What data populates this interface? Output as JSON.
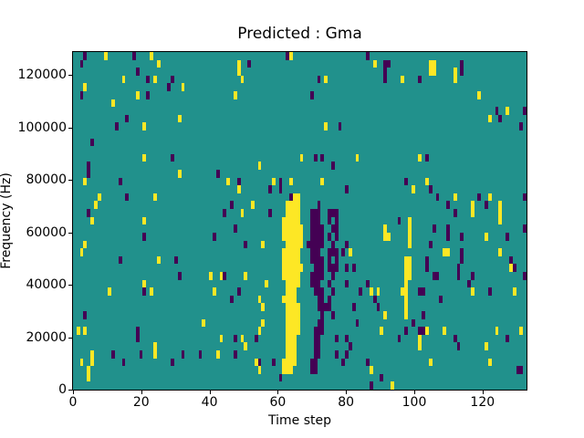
{
  "chart_data": {
    "type": "heatmap",
    "title": "Predicted : Gma",
    "xlabel": "Time step",
    "ylabel": "Frequency (Hz)",
    "x_ticks": [
      0,
      20,
      40,
      60,
      80,
      100,
      120
    ],
    "y_ticks": [
      0,
      20000,
      40000,
      60000,
      80000,
      100000,
      120000
    ],
    "xlim": [
      0,
      133
    ],
    "ylim": [
      0,
      128700
    ],
    "grid": {
      "cols": 130,
      "rows": 43,
      "row0": "top (highest frequency)"
    },
    "legend": "none",
    "axes_grid": false,
    "colors": {
      "background": "#21918c",
      "yellow": "#fde725",
      "purple": "#440154",
      "figure": "#ffffff",
      "text": "#000000"
    },
    "cells_yellow": [
      [
        9,
        0
      ],
      [
        22,
        0
      ],
      [
        62,
        0
      ],
      [
        24,
        1
      ],
      [
        47,
        1
      ],
      [
        86,
        1
      ],
      [
        102,
        1
      ],
      [
        103,
        1
      ],
      [
        47,
        2
      ],
      [
        102,
        2
      ],
      [
        103,
        2
      ],
      [
        109,
        2
      ],
      [
        14,
        3
      ],
      [
        23,
        3
      ],
      [
        48,
        3
      ],
      [
        72,
        3
      ],
      [
        94,
        3
      ],
      [
        109,
        3
      ],
      [
        3,
        4
      ],
      [
        31,
        4
      ],
      [
        18,
        5
      ],
      [
        46,
        5
      ],
      [
        116,
        5
      ],
      [
        11,
        6
      ],
      [
        124,
        7
      ],
      [
        30,
        8
      ],
      [
        119,
        8
      ],
      [
        20,
        9
      ],
      [
        72,
        9
      ],
      [
        20,
        13
      ],
      [
        65,
        13
      ],
      [
        81,
        13
      ],
      [
        99,
        13
      ],
      [
        53,
        14
      ],
      [
        30,
        15
      ],
      [
        3,
        16
      ],
      [
        44,
        16
      ],
      [
        57,
        16
      ],
      [
        62,
        16
      ],
      [
        71,
        16
      ],
      [
        101,
        16
      ],
      [
        47,
        17
      ],
      [
        97,
        17
      ],
      [
        7,
        18
      ],
      [
        23,
        18
      ],
      [
        109,
        18
      ],
      [
        119,
        18
      ],
      [
        63,
        18
      ],
      [
        64,
        18
      ],
      [
        6,
        19
      ],
      [
        51,
        19
      ],
      [
        114,
        19
      ],
      [
        122,
        19
      ],
      [
        61,
        19
      ],
      [
        62,
        19
      ],
      [
        63,
        19
      ],
      [
        64,
        19
      ],
      [
        48,
        20
      ],
      [
        114,
        20
      ],
      [
        122,
        20
      ],
      [
        61,
        20
      ],
      [
        62,
        20
      ],
      [
        63,
        20
      ],
      [
        64,
        20
      ],
      [
        5,
        21
      ],
      [
        20,
        21
      ],
      [
        96,
        21
      ],
      [
        122,
        21
      ],
      [
        60,
        21
      ],
      [
        61,
        21
      ],
      [
        62,
        21
      ],
      [
        63,
        21
      ],
      [
        64,
        21
      ],
      [
        89,
        22
      ],
      [
        96,
        22
      ],
      [
        60,
        22
      ],
      [
        61,
        22
      ],
      [
        62,
        22
      ],
      [
        63,
        22
      ],
      [
        64,
        22
      ],
      [
        65,
        22
      ],
      [
        89,
        23
      ],
      [
        90,
        23
      ],
      [
        96,
        23
      ],
      [
        118,
        23
      ],
      [
        60,
        23
      ],
      [
        61,
        23
      ],
      [
        62,
        23
      ],
      [
        63,
        23
      ],
      [
        64,
        23
      ],
      [
        65,
        23
      ],
      [
        3,
        24
      ],
      [
        54,
        24
      ],
      [
        96,
        24
      ],
      [
        61,
        24
      ],
      [
        62,
        24
      ],
      [
        63,
        24
      ],
      [
        64,
        24
      ],
      [
        65,
        24
      ],
      [
        2,
        25
      ],
      [
        79,
        25
      ],
      [
        106,
        25
      ],
      [
        107,
        25
      ],
      [
        122,
        25
      ],
      [
        60,
        25
      ],
      [
        61,
        25
      ],
      [
        62,
        25
      ],
      [
        63,
        25
      ],
      [
        64,
        25
      ],
      [
        24,
        26
      ],
      [
        95,
        26
      ],
      [
        96,
        26
      ],
      [
        60,
        26
      ],
      [
        61,
        26
      ],
      [
        62,
        26
      ],
      [
        63,
        26
      ],
      [
        64,
        26
      ],
      [
        23,
        37
      ],
      [
        95,
        27
      ],
      [
        96,
        27
      ],
      [
        125,
        27
      ],
      [
        60,
        27
      ],
      [
        61,
        27
      ],
      [
        62,
        27
      ],
      [
        63,
        27
      ],
      [
        64,
        27
      ],
      [
        65,
        27
      ],
      [
        39,
        28
      ],
      [
        42,
        28
      ],
      [
        49,
        28
      ],
      [
        95,
        28
      ],
      [
        96,
        28
      ],
      [
        60,
        28
      ],
      [
        61,
        28
      ],
      [
        62,
        28
      ],
      [
        63,
        28
      ],
      [
        64,
        28
      ],
      [
        20,
        29
      ],
      [
        55,
        29
      ],
      [
        95,
        29
      ],
      [
        61,
        29
      ],
      [
        62,
        29
      ],
      [
        63,
        29
      ],
      [
        64,
        29
      ],
      [
        10,
        30
      ],
      [
        22,
        30
      ],
      [
        40,
        30
      ],
      [
        85,
        30
      ],
      [
        87,
        30
      ],
      [
        94,
        30
      ],
      [
        95,
        30
      ],
      [
        114,
        30
      ],
      [
        126,
        30
      ],
      [
        61,
        30
      ],
      [
        62,
        30
      ],
      [
        63,
        30
      ],
      [
        53,
        31
      ],
      [
        95,
        31
      ],
      [
        60,
        31
      ],
      [
        61,
        31
      ],
      [
        62,
        31
      ],
      [
        63,
        31
      ],
      [
        54,
        32
      ],
      [
        95,
        32
      ],
      [
        61,
        32
      ],
      [
        62,
        32
      ],
      [
        63,
        32
      ],
      [
        64,
        32
      ],
      [
        89,
        33
      ],
      [
        95,
        33
      ],
      [
        61,
        33
      ],
      [
        62,
        33
      ],
      [
        63,
        33
      ],
      [
        64,
        33
      ],
      [
        37,
        34
      ],
      [
        54,
        34
      ],
      [
        61,
        34
      ],
      [
        62,
        34
      ],
      [
        63,
        34
      ],
      [
        64,
        34
      ],
      [
        1,
        35
      ],
      [
        3,
        35
      ],
      [
        53,
        35
      ],
      [
        88,
        35
      ],
      [
        101,
        35
      ],
      [
        106,
        35
      ],
      [
        121,
        35
      ],
      [
        128,
        35
      ],
      [
        61,
        35
      ],
      [
        62,
        35
      ],
      [
        63,
        35
      ],
      [
        64,
        35
      ],
      [
        42,
        36
      ],
      [
        48,
        36
      ],
      [
        99,
        36
      ],
      [
        61,
        36
      ],
      [
        62,
        36
      ],
      [
        63,
        36
      ],
      [
        49,
        37
      ],
      [
        99,
        37
      ],
      [
        118,
        37
      ],
      [
        61,
        37
      ],
      [
        62,
        37
      ],
      [
        63,
        37
      ],
      [
        5,
        38
      ],
      [
        23,
        38
      ],
      [
        41,
        38
      ],
      [
        61,
        38
      ],
      [
        62,
        38
      ],
      [
        63,
        38
      ],
      [
        2,
        39
      ],
      [
        5,
        39
      ],
      [
        52,
        39
      ],
      [
        102,
        39
      ],
      [
        119,
        39
      ],
      [
        60,
        39
      ],
      [
        61,
        39
      ],
      [
        62,
        39
      ],
      [
        63,
        39
      ],
      [
        4,
        40
      ],
      [
        53,
        40
      ],
      [
        85,
        40
      ],
      [
        60,
        40
      ],
      [
        61,
        40
      ],
      [
        62,
        40
      ],
      [
        4,
        41
      ],
      [
        91,
        42
      ]
    ],
    "cells_purple": [
      [
        3,
        0
      ],
      [
        17,
        0
      ],
      [
        61,
        0
      ],
      [
        84,
        0
      ],
      [
        2,
        1
      ],
      [
        50,
        1
      ],
      [
        89,
        1
      ],
      [
        90,
        1
      ],
      [
        111,
        1
      ],
      [
        18,
        2
      ],
      [
        89,
        2
      ],
      [
        111,
        2
      ],
      [
        21,
        3
      ],
      [
        28,
        3
      ],
      [
        70,
        3
      ],
      [
        89,
        3
      ],
      [
        99,
        3
      ],
      [
        27,
        4
      ],
      [
        2,
        5
      ],
      [
        21,
        5
      ],
      [
        68,
        5
      ],
      [
        121,
        7
      ],
      [
        129,
        7
      ],
      [
        15,
        8
      ],
      [
        122,
        8
      ],
      [
        12,
        9
      ],
      [
        76,
        9
      ],
      [
        128,
        9
      ],
      [
        5,
        11
      ],
      [
        28,
        13
      ],
      [
        69,
        13
      ],
      [
        71,
        13
      ],
      [
        101,
        13
      ],
      [
        4,
        14
      ],
      [
        74,
        14
      ],
      [
        4,
        15
      ],
      [
        41,
        15
      ],
      [
        13,
        16
      ],
      [
        47,
        16
      ],
      [
        59,
        16
      ],
      [
        95,
        16
      ],
      [
        56,
        17
      ],
      [
        59,
        17
      ],
      [
        78,
        17
      ],
      [
        102,
        17
      ],
      [
        15,
        18
      ],
      [
        62,
        18
      ],
      [
        104,
        18
      ],
      [
        116,
        18
      ],
      [
        129,
        18
      ],
      [
        45,
        19
      ],
      [
        107,
        19
      ],
      [
        118,
        19
      ],
      [
        70,
        19
      ],
      [
        4,
        20
      ],
      [
        43,
        20
      ],
      [
        56,
        20
      ],
      [
        109,
        20
      ],
      [
        68,
        20
      ],
      [
        69,
        20
      ],
      [
        70,
        20
      ],
      [
        73,
        20
      ],
      [
        74,
        20
      ],
      [
        75,
        20
      ],
      [
        93,
        21
      ],
      [
        68,
        21
      ],
      [
        69,
        21
      ],
      [
        70,
        21
      ],
      [
        73,
        21
      ],
      [
        75,
        21
      ],
      [
        46,
        22
      ],
      [
        103,
        22
      ],
      [
        107,
        22
      ],
      [
        129,
        22
      ],
      [
        68,
        22
      ],
      [
        69,
        22
      ],
      [
        70,
        22
      ],
      [
        71,
        22
      ],
      [
        74,
        22
      ],
      [
        75,
        22
      ],
      [
        20,
        23
      ],
      [
        40,
        23
      ],
      [
        107,
        23
      ],
      [
        111,
        23
      ],
      [
        124,
        23
      ],
      [
        68,
        23
      ],
      [
        69,
        23
      ],
      [
        70,
        23
      ],
      [
        71,
        23
      ],
      [
        73,
        23
      ],
      [
        75,
        23
      ],
      [
        49,
        24
      ],
      [
        78,
        24
      ],
      [
        102,
        24
      ],
      [
        67,
        24
      ],
      [
        68,
        24
      ],
      [
        69,
        24
      ],
      [
        70,
        24
      ],
      [
        71,
        24
      ],
      [
        74,
        24
      ],
      [
        77,
        25
      ],
      [
        111,
        25
      ],
      [
        68,
        25
      ],
      [
        69,
        25
      ],
      [
        70,
        25
      ],
      [
        73,
        25
      ],
      [
        74,
        25
      ],
      [
        75,
        25
      ],
      [
        13,
        26
      ],
      [
        29,
        26
      ],
      [
        101,
        26
      ],
      [
        111,
        26
      ],
      [
        125,
        26
      ],
      [
        68,
        26
      ],
      [
        69,
        26
      ],
      [
        70,
        26
      ],
      [
        71,
        26
      ],
      [
        73,
        26
      ],
      [
        75,
        26
      ],
      [
        78,
        27
      ],
      [
        80,
        27
      ],
      [
        101,
        27
      ],
      [
        110,
        27
      ],
      [
        126,
        27
      ],
      [
        69,
        27
      ],
      [
        70,
        27
      ],
      [
        71,
        27
      ],
      [
        73,
        27
      ],
      [
        74,
        27
      ],
      [
        75,
        27
      ],
      [
        30,
        28
      ],
      [
        43,
        28
      ],
      [
        103,
        28
      ],
      [
        104,
        28
      ],
      [
        110,
        28
      ],
      [
        114,
        28
      ],
      [
        129,
        28
      ],
      [
        68,
        28
      ],
      [
        69,
        28
      ],
      [
        70,
        28
      ],
      [
        71,
        28
      ],
      [
        74,
        28
      ],
      [
        78,
        29
      ],
      [
        84,
        29
      ],
      [
        113,
        29
      ],
      [
        68,
        29
      ],
      [
        69,
        29
      ],
      [
        70,
        29
      ],
      [
        73,
        29
      ],
      [
        20,
        30
      ],
      [
        47,
        30
      ],
      [
        82,
        30
      ],
      [
        99,
        30
      ],
      [
        100,
        30
      ],
      [
        119,
        30
      ],
      [
        69,
        30
      ],
      [
        70,
        30
      ],
      [
        71,
        30
      ],
      [
        74,
        30
      ],
      [
        45,
        31
      ],
      [
        86,
        31
      ],
      [
        105,
        31
      ],
      [
        70,
        31
      ],
      [
        71,
        31
      ],
      [
        73,
        31
      ],
      [
        80,
        32
      ],
      [
        87,
        32
      ],
      [
        70,
        32
      ],
      [
        71,
        32
      ],
      [
        72,
        32
      ],
      [
        73,
        32
      ],
      [
        3,
        33
      ],
      [
        100,
        33
      ],
      [
        71,
        33
      ],
      [
        74,
        33
      ],
      [
        81,
        34
      ],
      [
        97,
        34
      ],
      [
        70,
        34
      ],
      [
        71,
        34
      ],
      [
        18,
        35
      ],
      [
        95,
        35
      ],
      [
        99,
        35
      ],
      [
        100,
        35
      ],
      [
        69,
        35
      ],
      [
        70,
        35
      ],
      [
        71,
        35
      ],
      [
        18,
        36
      ],
      [
        46,
        36
      ],
      [
        52,
        36
      ],
      [
        75,
        36
      ],
      [
        78,
        36
      ],
      [
        93,
        36
      ],
      [
        109,
        36
      ],
      [
        124,
        36
      ],
      [
        69,
        36
      ],
      [
        70,
        36
      ],
      [
        79,
        37
      ],
      [
        110,
        37
      ],
      [
        69,
        37
      ],
      [
        70,
        37
      ],
      [
        11,
        38
      ],
      [
        19,
        38
      ],
      [
        31,
        38
      ],
      [
        36,
        38
      ],
      [
        46,
        38
      ],
      [
        75,
        38
      ],
      [
        78,
        38
      ],
      [
        69,
        38
      ],
      [
        70,
        38
      ],
      [
        14,
        39
      ],
      [
        28,
        39
      ],
      [
        53,
        39
      ],
      [
        57,
        39
      ],
      [
        77,
        39
      ],
      [
        84,
        39
      ],
      [
        68,
        39
      ],
      [
        69,
        39
      ],
      [
        127,
        40
      ],
      [
        128,
        40
      ],
      [
        68,
        40
      ],
      [
        69,
        40
      ],
      [
        59,
        41
      ],
      [
        88,
        41
      ],
      [
        85,
        42
      ]
    ]
  }
}
